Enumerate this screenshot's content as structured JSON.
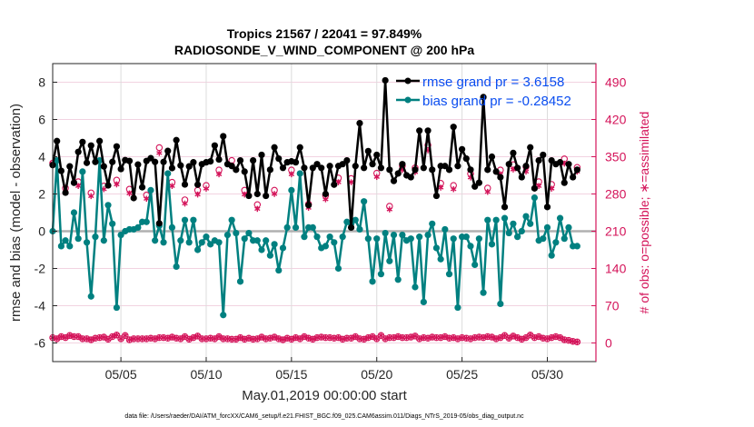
{
  "chart_data": {
    "type": "line",
    "title": [
      "Tropics 21567 / 22041 = 97.849%",
      "RADIOSONDE_V_WIND_COMPONENT @ 200 hPa"
    ],
    "xlabel": "May.01,2019 00:00:00 start",
    "ylabel": "rmse and bias (model - observation)",
    "ylabel_right": "# of obs: o=possible; ∗=assimilated",
    "footnote": "data file: /Users/raeder/DAI/ATM_forcXX/CAM6_setup/f.e21.FHIST_BGC.f09_025.CAM6assim.011/Diags_NTrS_2019-05/obs_diag_output.nc",
    "xlim_days": [
      0,
      31.85
    ],
    "x_tick_days": [
      4,
      9,
      14,
      19,
      24,
      29
    ],
    "x_tick_labels": [
      "05/05",
      "05/10",
      "05/15",
      "05/20",
      "05/25",
      "05/30"
    ],
    "ylim": [
      -7,
      9
    ],
    "y_ticks": [
      -6,
      -4,
      -2,
      0,
      2,
      4,
      6,
      8
    ],
    "ylim_right": [
      -35,
      525
    ],
    "y_ticks_right": [
      0,
      70,
      140,
      210,
      280,
      350,
      420,
      490
    ],
    "grid": true,
    "legend_position": "top-right",
    "legend": [
      {
        "name": "rmse grand pr = 3.6158",
        "color": "#000000"
      },
      {
        "name": "bias grand pr = -0.28452",
        "color": "#008080"
      }
    ],
    "time_step_days": 0.25,
    "series": [
      {
        "name": "rmse",
        "color": "#000000",
        "values": [
          3.55,
          4.84,
          3.24,
          2.07,
          3.48,
          2.6,
          4.26,
          4.79,
          3.67,
          4.6,
          3.72,
          4.84,
          3.48,
          2.46,
          3.72,
          4.55,
          3.34,
          3.82,
          3.77,
          1.78,
          3.58,
          2.36,
          3.77,
          3.92,
          3.72,
          0.42,
          3.72,
          4.31,
          3.39,
          4.89,
          3.53,
          2.51,
          3.48,
          3.7,
          2.5,
          3.6,
          3.7,
          3.75,
          4.6,
          3.85,
          5.1,
          3.6,
          3.5,
          3.3,
          3.8,
          3.2,
          1.9,
          3.8,
          2.0,
          4.1,
          1.9,
          3.3,
          4.5,
          3.9,
          3.4,
          3.7,
          3.75,
          3.7,
          4.5,
          3.4,
          1.4,
          3.4,
          3.6,
          3.4,
          2.0,
          3.5,
          2.5,
          3.5,
          3.6,
          3.8,
          0.2,
          3.5,
          5.8,
          3.4,
          4.3,
          3.6,
          4.1,
          3.4,
          8.1,
          3.3,
          2.7,
          3.1,
          3.6,
          3.0,
          2.9,
          3.3,
          5.4,
          3.4,
          5.4,
          3.3,
          1.9,
          3.5,
          3.5,
          3.3,
          5.6,
          3.5,
          4.4,
          3.9,
          3.3,
          2.4,
          2.6,
          7.2,
          3.3,
          4.0,
          3.2,
          2.9,
          1.3,
          3.6,
          4.2,
          3.4,
          2.9,
          3.5,
          4.5,
          2.3,
          3.8,
          4.1,
          1.3,
          3.8,
          3.6,
          3.7,
          2.6,
          3.6,
          2.9,
          3.3
        ]
      },
      {
        "name": "bias",
        "color": "#008080",
        "values": [
          0.0,
          3.8,
          -0.8,
          -0.5,
          -0.8,
          1.0,
          -0.4,
          3.2,
          -0.6,
          -3.5,
          -0.3,
          3.8,
          -0.5,
          1.4,
          0.4,
          -4.1,
          -0.2,
          0.0,
          0.1,
          0.1,
          0.2,
          0.5,
          0.5,
          2.2,
          -0.5,
          0.3,
          -0.6,
          3.1,
          0.2,
          -1.9,
          -0.5,
          0.6,
          -0.6,
          0.6,
          -1.0,
          -0.6,
          -0.3,
          -0.7,
          -0.5,
          -0.6,
          -4.5,
          -0.2,
          0.6,
          -0.1,
          -2.7,
          -0.4,
          -0.1,
          -0.5,
          -0.5,
          -1.0,
          -0.5,
          -1.3,
          -0.7,
          -2.1,
          -0.9,
          0.2,
          2.2,
          0.2,
          3.1,
          -0.3,
          0.2,
          0.2,
          -0.3,
          -0.9,
          -0.8,
          -0.3,
          -0.6,
          -2.0,
          -0.3,
          0.5,
          0.4,
          0.6,
          0.1,
          1.6,
          -0.4,
          -2.7,
          -0.4,
          -2.3,
          -0.1,
          -1.6,
          -0.2,
          -2.6,
          -0.2,
          -0.5,
          -0.4,
          -3.0,
          -0.3,
          -3.8,
          -0.2,
          0.4,
          -0.9,
          -1.5,
          0.1,
          -2.3,
          -0.4,
          -4.1,
          -0.3,
          -0.3,
          -0.8,
          -1.8,
          -0.4,
          -3.3,
          0.6,
          -0.7,
          0.6,
          -3.9,
          0.7,
          -0.1,
          0.4,
          -0.3,
          0.0,
          0.8,
          0.4,
          1.8,
          -0.5,
          -0.4,
          0.2,
          -1.3,
          -0.6,
          0.7,
          -0.4,
          0.2,
          -0.8,
          -0.8
        ]
      },
      {
        "name": "obs_possible",
        "color": "#d4145a",
        "values": [
          10,
          8,
          12,
          10,
          14,
          12,
          12,
          8,
          8,
          6,
          9,
          10,
          11,
          7,
          12,
          15,
          8,
          14,
          6,
          8,
          8,
          8,
          8,
          9,
          8,
          10,
          10,
          9,
          11,
          9,
          8,
          12,
          7,
          10,
          13,
          8,
          8,
          9,
          8,
          12,
          8,
          8,
          7,
          7,
          10,
          7,
          9,
          7,
          8,
          11,
          8,
          9,
          11,
          8,
          6,
          9,
          7,
          10,
          8,
          12,
          9,
          7,
          10,
          11,
          10,
          10,
          9,
          10,
          7,
          9,
          9,
          12,
          8,
          7,
          10,
          12,
          8,
          14,
          8,
          10,
          10,
          12,
          10,
          10,
          11,
          13,
          8,
          10,
          9,
          11,
          10,
          10,
          12,
          9,
          10,
          8,
          10,
          9,
          8,
          10,
          11,
          10,
          12,
          11,
          8,
          10,
          14,
          9,
          13,
          10,
          7,
          10,
          15,
          10,
          12,
          9,
          8,
          10,
          12,
          10,
          6,
          5,
          3,
          2
        ]
      },
      {
        "name": "obs_assimilated",
        "color": "#d4145a",
        "values": [
          10,
          8,
          12,
          10,
          14,
          12,
          12,
          8,
          8,
          6,
          9,
          10,
          11,
          7,
          12,
          15,
          8,
          14,
          6,
          8,
          8,
          8,
          8,
          9,
          8,
          10,
          10,
          9,
          11,
          9,
          8,
          12,
          7,
          10,
          13,
          8,
          8,
          9,
          8,
          12,
          8,
          8,
          7,
          7,
          10,
          7,
          9,
          7,
          8,
          11,
          8,
          9,
          11,
          8,
          6,
          9,
          7,
          10,
          8,
          12,
          9,
          7,
          10,
          11,
          10,
          10,
          9,
          10,
          7,
          9,
          9,
          12,
          8,
          7,
          10,
          12,
          8,
          14,
          8,
          10,
          10,
          12,
          10,
          10,
          11,
          13,
          8,
          10,
          9,
          11,
          10,
          10,
          12,
          9,
          10,
          8,
          10,
          9,
          8,
          10,
          11,
          10,
          12,
          11,
          8,
          10,
          14,
          9,
          13,
          10,
          7,
          10,
          15,
          10,
          12,
          9,
          8,
          10,
          12,
          10,
          6,
          5,
          3,
          2
        ]
      },
      {
        "name": "upper_obs_possible",
        "color": "#d4145a",
        "points": [
          [
            0.0,
            338
          ],
          [
            0.75,
            291
          ],
          [
            1.5,
            303
          ],
          [
            2.25,
            282
          ],
          [
            3.0,
            295
          ],
          [
            3.75,
            306
          ],
          [
            4.5,
            289
          ],
          [
            5.5,
            278
          ],
          [
            6.25,
            367
          ],
          [
            7.0,
            302
          ],
          [
            7.75,
            269
          ],
          [
            8.5,
            287
          ],
          [
            9.0,
            296
          ],
          [
            9.75,
            325
          ],
          [
            10.5,
            343
          ],
          [
            11.25,
            287
          ],
          [
            12.0,
            260
          ],
          [
            13.0,
            287
          ],
          [
            14.0,
            325
          ],
          [
            15.0,
            261
          ],
          [
            16.0,
            277
          ],
          [
            16.75,
            310
          ],
          [
            17.5,
            309
          ],
          [
            19.0,
            319
          ],
          [
            19.75,
            257
          ],
          [
            20.5,
            333
          ],
          [
            21.25,
            329
          ],
          [
            22.0,
            372
          ],
          [
            22.75,
            300
          ],
          [
            23.5,
            296
          ],
          [
            24.5,
            318
          ],
          [
            25.5,
            291
          ],
          [
            26.25,
            325
          ],
          [
            27.0,
            335
          ],
          [
            27.75,
            331
          ],
          [
            28.5,
            303
          ],
          [
            29.25,
            298
          ],
          [
            30.0,
            346
          ],
          [
            30.75,
            330
          ]
        ]
      },
      {
        "name": "upper_obs_assimilated",
        "color": "#d4145a",
        "points": [
          [
            0.0,
            338
          ],
          [
            0.75,
            283
          ],
          [
            1.5,
            295
          ],
          [
            2.25,
            276
          ],
          [
            3.0,
            289
          ],
          [
            3.75,
            298
          ],
          [
            4.5,
            281
          ],
          [
            5.5,
            271
          ],
          [
            6.25,
            357
          ],
          [
            7.0,
            295
          ],
          [
            7.75,
            262
          ],
          [
            8.5,
            279
          ],
          [
            9.0,
            290
          ],
          [
            9.75,
            317
          ],
          [
            10.5,
            334
          ],
          [
            11.25,
            279
          ],
          [
            12.0,
            252
          ],
          [
            13.0,
            280
          ],
          [
            14.0,
            317
          ],
          [
            15.0,
            254
          ],
          [
            16.0,
            270
          ],
          [
            16.75,
            302
          ],
          [
            17.5,
            302
          ],
          [
            19.0,
            312
          ],
          [
            19.75,
            251
          ],
          [
            20.5,
            325
          ],
          [
            21.25,
            321
          ],
          [
            22.0,
            362
          ],
          [
            22.75,
            292
          ],
          [
            23.5,
            289
          ],
          [
            24.5,
            311
          ],
          [
            25.5,
            284
          ],
          [
            26.25,
            317
          ],
          [
            27.0,
            326
          ],
          [
            27.75,
            322
          ],
          [
            28.5,
            295
          ],
          [
            29.25,
            290
          ],
          [
            30.0,
            337
          ],
          [
            30.75,
            322
          ]
        ]
      }
    ]
  }
}
